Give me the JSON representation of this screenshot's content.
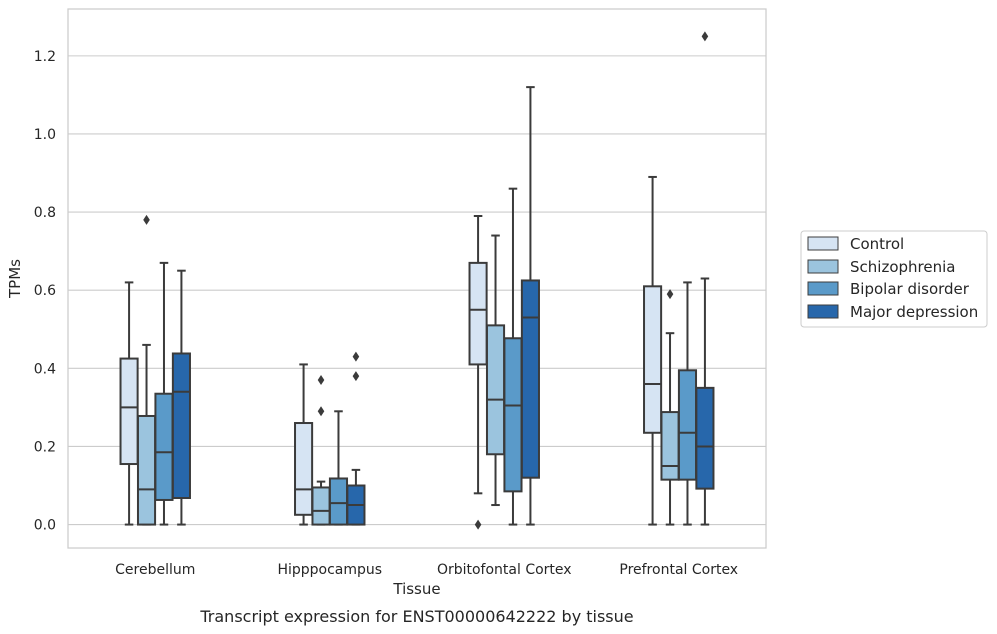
{
  "chart_data": {
    "type": "boxplot",
    "title": "Transcript expression for ENST00000642222 by tissue",
    "xlabel": "Tissue",
    "ylabel": "TPMs",
    "ylim": [
      -0.06,
      1.32
    ],
    "yticks": [
      "0.0",
      "0.2",
      "0.4",
      "0.6",
      "0.8",
      "1.0",
      "1.2"
    ],
    "grid": "horizontal",
    "legend_position": "right",
    "categories": [
      "Cerebellum",
      "Hipppocampus",
      "Orbitofontal Cortex",
      "Prefrontal Cortex"
    ],
    "series": [
      {
        "name": "Control",
        "color": "#d6e4f3",
        "boxes": [
          {
            "whislo": 0.0,
            "q1": 0.155,
            "med": 0.3,
            "q3": 0.425,
            "whishi": 0.62,
            "fliers": []
          },
          {
            "whislo": 0.0,
            "q1": 0.025,
            "med": 0.09,
            "q3": 0.26,
            "whishi": 0.41,
            "fliers": []
          },
          {
            "whislo": 0.08,
            "q1": 0.41,
            "med": 0.55,
            "q3": 0.67,
            "whishi": 0.79,
            "fliers": [
              0.0
            ]
          },
          {
            "whislo": 0.0,
            "q1": 0.235,
            "med": 0.36,
            "q3": 0.61,
            "whishi": 0.89,
            "fliers": []
          }
        ]
      },
      {
        "name": "Schizophrenia",
        "color": "#9bc4de",
        "boxes": [
          {
            "whislo": 0.0,
            "q1": 0.0,
            "med": 0.09,
            "q3": 0.278,
            "whishi": 0.46,
            "fliers": [
              0.78
            ]
          },
          {
            "whislo": 0.0,
            "q1": 0.0,
            "med": 0.035,
            "q3": 0.095,
            "whishi": 0.11,
            "fliers": [
              0.29,
              0.37
            ]
          },
          {
            "whislo": 0.05,
            "q1": 0.18,
            "med": 0.32,
            "q3": 0.51,
            "whishi": 0.74,
            "fliers": []
          },
          {
            "whislo": 0.0,
            "q1": 0.115,
            "med": 0.15,
            "q3": 0.288,
            "whishi": 0.49,
            "fliers": [
              0.59
            ]
          }
        ]
      },
      {
        "name": "Bipolar disorder",
        "color": "#5a9ac9",
        "boxes": [
          {
            "whislo": 0.0,
            "q1": 0.063,
            "med": 0.185,
            "q3": 0.335,
            "whishi": 0.67,
            "fliers": []
          },
          {
            "whislo": 0.0,
            "q1": 0.0,
            "med": 0.055,
            "q3": 0.118,
            "whishi": 0.29,
            "fliers": []
          },
          {
            "whislo": 0.0,
            "q1": 0.085,
            "med": 0.305,
            "q3": 0.477,
            "whishi": 0.86,
            "fliers": []
          },
          {
            "whislo": 0.0,
            "q1": 0.115,
            "med": 0.235,
            "q3": 0.395,
            "whishi": 0.62,
            "fliers": []
          }
        ]
      },
      {
        "name": "Major depression",
        "color": "#2767ab",
        "boxes": [
          {
            "whislo": 0.0,
            "q1": 0.068,
            "med": 0.34,
            "q3": 0.438,
            "whishi": 0.65,
            "fliers": []
          },
          {
            "whislo": 0.0,
            "q1": 0.0,
            "med": 0.05,
            "q3": 0.1,
            "whishi": 0.14,
            "fliers": [
              0.38,
              0.43
            ]
          },
          {
            "whislo": 0.0,
            "q1": 0.12,
            "med": 0.53,
            "q3": 0.625,
            "whishi": 1.12,
            "fliers": []
          },
          {
            "whislo": 0.0,
            "q1": 0.092,
            "med": 0.2,
            "q3": 0.35,
            "whishi": 0.63,
            "fliers": [
              1.25
            ]
          }
        ]
      }
    ]
  }
}
